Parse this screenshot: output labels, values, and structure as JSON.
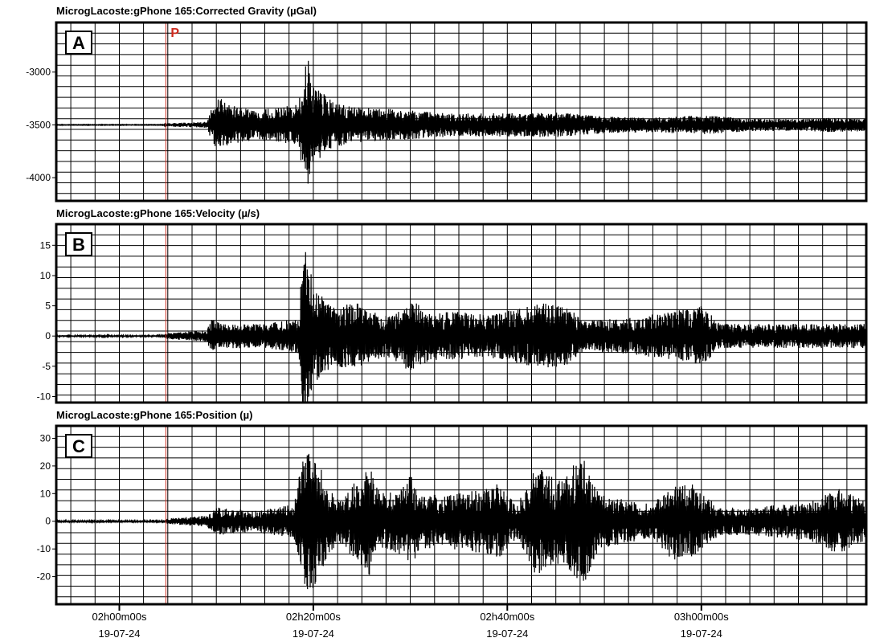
{
  "chart_data": {
    "type": "line",
    "x_ticks": [
      {
        "time": "02h00m00s",
        "date": "19-07-24"
      },
      {
        "time": "02h20m00s",
        "date": "19-07-24"
      },
      {
        "time": "02h40m00s",
        "date": "19-07-24"
      },
      {
        "time": "03h00m00s",
        "date": "19-07-24"
      }
    ],
    "xlim_minutes": [
      -6.5,
      77
    ],
    "p_arrival": {
      "label": "P",
      "minute": 4.8,
      "color": "#cc2a1e"
    },
    "trace_color": "#000000",
    "grid": true,
    "panels": [
      {
        "letter": "A",
        "title": "MicrogLacoste:gPhone 165:Corrected Gravity (µGal)",
        "ylim": [
          -4220,
          -2530
        ],
        "yticks": [
          -3000,
          -3500,
          -4000
        ],
        "baseline": -3500,
        "envelope": [
          [
            -6.5,
            3
          ],
          [
            4.5,
            3
          ],
          [
            5,
            15
          ],
          [
            9,
            30
          ],
          [
            9.5,
            150
          ],
          [
            10.3,
            280
          ],
          [
            11,
            200
          ],
          [
            14,
            140
          ],
          [
            18.5,
            200
          ],
          [
            19,
            560
          ],
          [
            19.5,
            620
          ],
          [
            20,
            380
          ],
          [
            22,
            220
          ],
          [
            24,
            170
          ],
          [
            28,
            150
          ],
          [
            31,
            130
          ],
          [
            35,
            110
          ],
          [
            40,
            110
          ],
          [
            45,
            120
          ],
          [
            50,
            80
          ],
          [
            55,
            70
          ],
          [
            60,
            90
          ],
          [
            62,
            80
          ],
          [
            65,
            60
          ],
          [
            70,
            55
          ],
          [
            73,
            70
          ],
          [
            77,
            60
          ]
        ]
      },
      {
        "letter": "B",
        "title": "MicrogLacoste:gPhone 165:Velocity (µ/s)",
        "ylim": [
          -11,
          18.5
        ],
        "yticks": [
          15,
          10,
          5,
          0,
          -5,
          -10
        ],
        "baseline": 0,
        "envelope": [
          [
            -6.5,
            0.15
          ],
          [
            4.5,
            0.15
          ],
          [
            5,
            0.5
          ],
          [
            9,
            1
          ],
          [
            9.5,
            2.8
          ],
          [
            11,
            2
          ],
          [
            15,
            2
          ],
          [
            18.5,
            3
          ],
          [
            19,
            16
          ],
          [
            19.5,
            14
          ],
          [
            20,
            8
          ],
          [
            22,
            5
          ],
          [
            24.5,
            5.5
          ],
          [
            26,
            4
          ],
          [
            28,
            3.5
          ],
          [
            30,
            6
          ],
          [
            32,
            4
          ],
          [
            35,
            4
          ],
          [
            38,
            3.5
          ],
          [
            41,
            4.5
          ],
          [
            44,
            5.5
          ],
          [
            46,
            5
          ],
          [
            48,
            2.5
          ],
          [
            52,
            3
          ],
          [
            57,
            4
          ],
          [
            60,
            5
          ],
          [
            62,
            2
          ],
          [
            66,
            2
          ],
          [
            70,
            2
          ],
          [
            74,
            2
          ],
          [
            77,
            2
          ]
        ]
      },
      {
        "letter": "C",
        "title": "MicrogLacoste:gPhone 165:Position (µ)",
        "ylim": [
          -30,
          34.5
        ],
        "yticks": [
          30,
          20,
          10,
          0,
          -10,
          -20
        ],
        "baseline": 0,
        "envelope": [
          [
            -6.5,
            0.3
          ],
          [
            4.5,
            0.3
          ],
          [
            5,
            1
          ],
          [
            9,
            2
          ],
          [
            10,
            5
          ],
          [
            14,
            4
          ],
          [
            18,
            6
          ],
          [
            18.8,
            22
          ],
          [
            19.5,
            26
          ],
          [
            20.5,
            22
          ],
          [
            21.5,
            12
          ],
          [
            23,
            8
          ],
          [
            25,
            18
          ],
          [
            26,
            20
          ],
          [
            27,
            10
          ],
          [
            29,
            12
          ],
          [
            30,
            18
          ],
          [
            31,
            10
          ],
          [
            34,
            10
          ],
          [
            38,
            12
          ],
          [
            39,
            14
          ],
          [
            41,
            6
          ],
          [
            43,
            20
          ],
          [
            45,
            15
          ],
          [
            47,
            21
          ],
          [
            48,
            22
          ],
          [
            49.5,
            10
          ],
          [
            52,
            8
          ],
          [
            55,
            6
          ],
          [
            57,
            14
          ],
          [
            59,
            14
          ],
          [
            60,
            10
          ],
          [
            62,
            5
          ],
          [
            65,
            5
          ],
          [
            68,
            6
          ],
          [
            71,
            7
          ],
          [
            74,
            12
          ],
          [
            77,
            7
          ]
        ]
      }
    ]
  }
}
